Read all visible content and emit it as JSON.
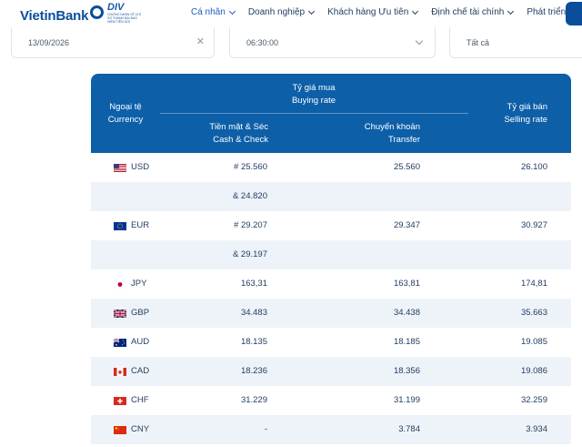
{
  "header": {
    "logo_text": "VietinBank",
    "badge_title": "DIV",
    "badge_sub": "CHỨNG NHẬN VỀ CHỈ SỐ THANH BẠI BAO HIỂM TIỀN GỬI",
    "nav": [
      {
        "label": "Cá nhân",
        "active": true
      },
      {
        "label": "Doanh nghiệp",
        "active": false
      },
      {
        "label": "Khách hàng Ưu tiên",
        "active": false
      },
      {
        "label": "Định chế tài chính",
        "active": false
      },
      {
        "label": "Phát triển bền vững",
        "active": false
      }
    ]
  },
  "filters": {
    "date": "13/09/2026",
    "time": "06:30:00",
    "branch": "Tất cả"
  },
  "table": {
    "col_currency_vi": "Ngoại tệ",
    "col_currency_en": "Currency",
    "col_buy_vi": "Tỷ giá mua",
    "col_buy_en": "Buying rate",
    "col_cash_vi": "Tiền mặt & Séc",
    "col_cash_en": "Cash & Check",
    "col_transfer_vi": "Chuyển khoản",
    "col_transfer_en": "Transfer",
    "col_sell_vi": "Tỷ giá bán",
    "col_sell_en": "Selling rate",
    "rows": [
      {
        "code": "USD",
        "flag": "us-flag-icon",
        "cash": "# 25.560",
        "transfer": "25.560",
        "sell": "26.100"
      },
      {
        "code": "",
        "flag": "",
        "cash": "& 24.820",
        "transfer": "",
        "sell": ""
      },
      {
        "code": "EUR",
        "flag": "eu-flag-icon",
        "cash": "# 29.207",
        "transfer": "29.347",
        "sell": "30.927"
      },
      {
        "code": "",
        "flag": "",
        "cash": "& 29.197",
        "transfer": "",
        "sell": ""
      },
      {
        "code": "JPY",
        "flag": "jp-flag-icon",
        "cash": "163,31",
        "transfer": "163,81",
        "sell": "174,81"
      },
      {
        "code": "GBP",
        "flag": "gb-flag-icon",
        "cash": "34.483",
        "transfer": "34.438",
        "sell": "35.663"
      },
      {
        "code": "AUD",
        "flag": "au-flag-icon",
        "cash": "18.135",
        "transfer": "18.185",
        "sell": "19.085"
      },
      {
        "code": "CAD",
        "flag": "ca-flag-icon",
        "cash": "18.236",
        "transfer": "18.356",
        "sell": "19.086"
      },
      {
        "code": "CHF",
        "flag": "ch-flag-icon",
        "cash": "31.229",
        "transfer": "31.199",
        "sell": "32.259"
      },
      {
        "code": "CNY",
        "flag": "cn-flag-icon",
        "cash": "-",
        "transfer": "3.784",
        "sell": "3.934"
      }
    ]
  },
  "colors": {
    "header_blue": "#0d5fa8",
    "alt_row": "#eef3f9",
    "text": "#1d3b5f",
    "nav_active": "#1a5fc1"
  }
}
